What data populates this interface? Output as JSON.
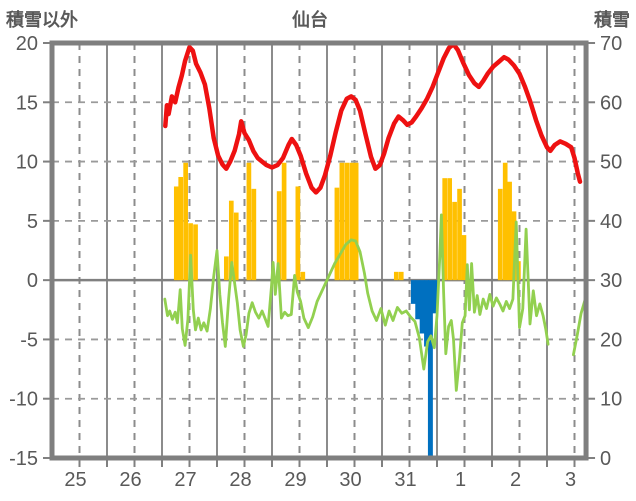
{
  "header": {
    "left_axis_title": "積雪以外",
    "chart_title": "仙台",
    "right_axis_title": "積雪"
  },
  "chart_data": {
    "type": "combo",
    "title": "仙台",
    "grid": true,
    "legend": "none",
    "left_axis": {
      "label": "積雪以外",
      "min": -15,
      "max": 20,
      "ticks": [
        20,
        15,
        10,
        5,
        0,
        -5,
        -10,
        -15
      ]
    },
    "right_axis": {
      "label": "積雪",
      "min": 0,
      "max": 70,
      "ticks": [
        70,
        60,
        50,
        40,
        30,
        20,
        10,
        0
      ]
    },
    "x_axis": {
      "labels": [
        "25",
        "26",
        "27",
        "28",
        "29",
        "30",
        "31",
        "1",
        "2",
        "3"
      ],
      "total_days": 9.71,
      "note": "x units are days from start of Jan 25; solid gridline each midnight, dashed each noon"
    },
    "series": [
      {
        "name": "snow-depth-line",
        "type": "line",
        "axis": "right",
        "color": "#ee1111",
        "width": 4.5,
        "segments": [
          [
            [
              2.06,
              56
            ],
            [
              2.09,
              59.5
            ],
            [
              2.12,
              58
            ],
            [
              2.18,
              61
            ],
            [
              2.24,
              60
            ],
            [
              2.3,
              62.5
            ],
            [
              2.36,
              64.5
            ],
            [
              2.42,
              67
            ],
            [
              2.5,
              69.3
            ],
            [
              2.56,
              68.7
            ],
            [
              2.62,
              66.5
            ],
            [
              2.7,
              65
            ],
            [
              2.78,
              63
            ],
            [
              2.86,
              59
            ],
            [
              2.94,
              54
            ],
            [
              3.02,
              51
            ],
            [
              3.1,
              49.5
            ],
            [
              3.17,
              48.8
            ],
            [
              3.24,
              50
            ],
            [
              3.32,
              51.8
            ],
            [
              3.4,
              54.6
            ],
            [
              3.44,
              56.8
            ],
            [
              3.5,
              54.8
            ],
            [
              3.58,
              53.6
            ],
            [
              3.66,
              51.8
            ],
            [
              3.74,
              50.6
            ],
            [
              3.82,
              50
            ],
            [
              3.9,
              49.4
            ],
            [
              4.0,
              49
            ],
            [
              4.1,
              49.4
            ],
            [
              4.2,
              50.6
            ],
            [
              4.3,
              52.8
            ],
            [
              4.36,
              53.8
            ],
            [
              4.44,
              52.8
            ],
            [
              4.52,
              51
            ],
            [
              4.62,
              48
            ],
            [
              4.72,
              45.6
            ],
            [
              4.8,
              44.8
            ],
            [
              4.88,
              45.6
            ],
            [
              4.96,
              47.6
            ],
            [
              5.06,
              51
            ],
            [
              5.16,
              55
            ],
            [
              5.26,
              58.6
            ],
            [
              5.36,
              60.6
            ],
            [
              5.44,
              61
            ],
            [
              5.52,
              60.4
            ],
            [
              5.6,
              58.6
            ],
            [
              5.7,
              54.6
            ],
            [
              5.8,
              50.8
            ],
            [
              5.88,
              48.8
            ],
            [
              5.96,
              49.4
            ],
            [
              6.04,
              51.4
            ],
            [
              6.12,
              54
            ],
            [
              6.22,
              56.4
            ],
            [
              6.3,
              57.6
            ],
            [
              6.38,
              57
            ],
            [
              6.46,
              56.2
            ],
            [
              6.54,
              56.6
            ],
            [
              6.62,
              57.6
            ],
            [
              6.72,
              59
            ],
            [
              6.82,
              60.6
            ],
            [
              6.92,
              62.6
            ],
            [
              7.02,
              65
            ],
            [
              7.12,
              67.4
            ],
            [
              7.22,
              69.2
            ],
            [
              7.3,
              69.8
            ],
            [
              7.38,
              68.8
            ],
            [
              7.48,
              66.6
            ],
            [
              7.58,
              64.6
            ],
            [
              7.68,
              63.2
            ],
            [
              7.76,
              62.6
            ],
            [
              7.84,
              63.6
            ],
            [
              7.92,
              64.8
            ],
            [
              8.02,
              66
            ],
            [
              8.12,
              66.8
            ],
            [
              8.22,
              67.6
            ],
            [
              8.3,
              67.2
            ],
            [
              8.4,
              66.2
            ],
            [
              8.5,
              64.8
            ],
            [
              8.6,
              62.6
            ],
            [
              8.7,
              60
            ],
            [
              8.8,
              57
            ],
            [
              8.9,
              54.4
            ],
            [
              9.0,
              52.4
            ],
            [
              9.06,
              51.8
            ],
            [
              9.14,
              52.8
            ],
            [
              9.24,
              53.4
            ],
            [
              9.34,
              53
            ],
            [
              9.44,
              52.4
            ],
            [
              9.5,
              50.6
            ],
            [
              9.56,
              48
            ],
            [
              9.6,
              46.6
            ]
          ]
        ]
      },
      {
        "name": "temperature-line",
        "type": "line",
        "axis": "left",
        "color": "#92d050",
        "width": 2.8,
        "segments": [
          [
            [
              2.05,
              -1.6
            ],
            [
              2.1,
              -3.0
            ],
            [
              2.14,
              -2.6
            ],
            [
              2.19,
              -3.3
            ],
            [
              2.24,
              -2.7
            ],
            [
              2.28,
              -3.6
            ],
            [
              2.33,
              -0.8
            ],
            [
              2.37,
              -4.1
            ],
            [
              2.42,
              -5.5
            ],
            [
              2.47,
              -3.3
            ],
            [
              2.52,
              2.1
            ],
            [
              2.57,
              -2.5
            ],
            [
              2.61,
              -4.2
            ],
            [
              2.66,
              -3.2
            ],
            [
              2.71,
              -4.2
            ],
            [
              2.76,
              -3.6
            ],
            [
              2.82,
              -4.3
            ],
            [
              2.88,
              -2.4
            ],
            [
              2.94,
              0.3
            ],
            [
              3.0,
              2.5
            ],
            [
              3.05,
              -1.2
            ],
            [
              3.1,
              -3.6
            ],
            [
              3.15,
              -5.6
            ],
            [
              3.21,
              -1.6
            ],
            [
              3.27,
              1.5
            ],
            [
              3.33,
              -0.6
            ],
            [
              3.37,
              -1.9
            ],
            [
              3.42,
              -4.2
            ],
            [
              3.48,
              -5.6
            ],
            [
              3.53,
              -4.6
            ],
            [
              3.58,
              -2.8
            ],
            [
              3.64,
              -1.9
            ],
            [
              3.7,
              -2.7
            ],
            [
              3.76,
              -3.2
            ],
            [
              3.82,
              -2.6
            ],
            [
              3.88,
              -3.3
            ],
            [
              3.93,
              -3.9
            ],
            [
              3.99,
              -0.5
            ],
            [
              4.02,
              1.5
            ],
            [
              4.06,
              -1.2
            ],
            [
              4.11,
              1.4
            ],
            [
              4.17,
              -3.2
            ],
            [
              4.23,
              -2.7
            ],
            [
              4.29,
              -3.0
            ],
            [
              4.35,
              -2.9
            ],
            [
              4.41,
              0.4
            ],
            [
              4.46,
              -1.0
            ],
            [
              4.52,
              -1.8
            ],
            [
              4.58,
              -3.2
            ],
            [
              4.66,
              -4.0
            ],
            [
              4.74,
              -3.1
            ],
            [
              4.82,
              -1.8
            ],
            [
              4.9,
              -1.0
            ],
            [
              4.98,
              -0.2
            ],
            [
              5.06,
              0.6
            ],
            [
              5.14,
              1.4
            ],
            [
              5.24,
              2.2
            ],
            [
              5.34,
              3.0
            ],
            [
              5.44,
              3.4
            ],
            [
              5.52,
              3.3
            ],
            [
              5.6,
              2.4
            ],
            [
              5.68,
              0.6
            ],
            [
              5.74,
              -1.1
            ],
            [
              5.82,
              -2.6
            ],
            [
              5.9,
              -3.4
            ],
            [
              5.98,
              -2.4
            ],
            [
              6.06,
              -3.8
            ],
            [
              6.13,
              -2.6
            ],
            [
              6.2,
              -3.4
            ],
            [
              6.28,
              -2.3
            ],
            [
              6.36,
              -2.8
            ],
            [
              6.44,
              -2.6
            ],
            [
              6.52,
              -3.1
            ],
            [
              6.6,
              -3.5
            ],
            [
              6.68,
              -4.9
            ],
            [
              6.76,
              -7.5
            ],
            [
              6.83,
              -5.2
            ],
            [
              6.89,
              -4.7
            ],
            [
              6.95,
              -5.7
            ],
            [
              7.0,
              -3.0
            ],
            [
              7.05,
              2.0
            ],
            [
              7.08,
              5.5
            ],
            [
              7.12,
              -1.0
            ],
            [
              7.16,
              -6.2
            ],
            [
              7.21,
              -3.9
            ],
            [
              7.26,
              -3.4
            ],
            [
              7.3,
              -5.0
            ],
            [
              7.35,
              -9.3
            ],
            [
              7.41,
              -6.5
            ],
            [
              7.46,
              -3.6
            ],
            [
              7.51,
              -3.0
            ],
            [
              7.55,
              1.3
            ],
            [
              7.59,
              -2.5
            ],
            [
              7.63,
              1.4
            ],
            [
              7.68,
              -2.7
            ],
            [
              7.73,
              -1.3
            ],
            [
              7.78,
              -2.9
            ],
            [
              7.84,
              -1.6
            ],
            [
              7.9,
              -2.4
            ],
            [
              7.96,
              -1.2
            ],
            [
              8.02,
              -2.2
            ],
            [
              8.08,
              -1.5
            ],
            [
              8.14,
              -2.0
            ],
            [
              8.2,
              -2.6
            ],
            [
              8.26,
              -1.8
            ],
            [
              8.32,
              -2.4
            ],
            [
              8.38,
              -1.6
            ],
            [
              8.44,
              4.9
            ],
            [
              8.5,
              -4.0
            ],
            [
              8.56,
              -2.4
            ],
            [
              8.62,
              4.3
            ],
            [
              8.69,
              -3.7
            ],
            [
              8.75,
              -0.9
            ],
            [
              8.81,
              -3.0
            ],
            [
              8.87,
              -2.0
            ],
            [
              8.93,
              -3.0
            ],
            [
              8.98,
              -4.2
            ],
            [
              9.02,
              -5.4
            ]
          ],
          [
            [
              9.48,
              -6.3
            ],
            [
              9.55,
              -4.6
            ],
            [
              9.62,
              -2.8
            ],
            [
              9.69,
              -1.7
            ]
          ]
        ]
      },
      {
        "name": "snowfall-bars",
        "type": "bar",
        "axis": "left",
        "color": "#ffc000",
        "bar_width": 0.085,
        "points": [
          [
            2.26,
            7.9
          ],
          [
            2.34,
            8.7
          ],
          [
            2.43,
            9.9
          ],
          [
            2.52,
            4.8
          ],
          [
            2.61,
            4.7
          ],
          [
            3.17,
            2.0
          ],
          [
            3.26,
            6.7
          ],
          [
            3.35,
            5.7
          ],
          [
            3.58,
            9.9
          ],
          [
            3.67,
            7.7
          ],
          [
            4.13,
            7.5
          ],
          [
            4.22,
            9.9
          ],
          [
            4.47,
            7.9
          ],
          [
            4.56,
            0.7
          ],
          [
            5.18,
            7.8
          ],
          [
            5.27,
            9.9
          ],
          [
            5.36,
            9.9
          ],
          [
            5.45,
            9.9
          ],
          [
            5.53,
            9.9
          ],
          [
            6.26,
            0.7
          ],
          [
            6.35,
            0.7
          ],
          [
            7.14,
            8.6
          ],
          [
            7.23,
            8.6
          ],
          [
            7.32,
            6.6
          ],
          [
            7.41,
            7.7
          ],
          [
            7.49,
            3.8
          ],
          [
            8.15,
            7.7
          ],
          [
            8.24,
            9.9
          ],
          [
            8.32,
            8.3
          ],
          [
            8.4,
            5.8
          ],
          [
            8.48,
            1.6
          ]
        ]
      },
      {
        "name": "negative-bars",
        "type": "bar",
        "axis": "left",
        "color": "#0070c0",
        "bar_width": 0.09,
        "points": [
          [
            6.57,
            -2.0
          ],
          [
            6.65,
            -3.3
          ],
          [
            6.73,
            -4.5
          ],
          [
            6.81,
            -5.6
          ],
          [
            6.88,
            -14.9
          ],
          [
            6.96,
            -2.8
          ]
        ]
      },
      {
        "name": "zero-baseline-line",
        "type": "line",
        "axis": "right",
        "color": "#7030a0",
        "width": 4,
        "segments": [
          [
            [
              6.37,
              0
            ],
            [
              9.11,
              0
            ]
          ],
          [
            [
              9.57,
              0
            ],
            [
              9.7,
              0
            ]
          ]
        ]
      }
    ]
  }
}
